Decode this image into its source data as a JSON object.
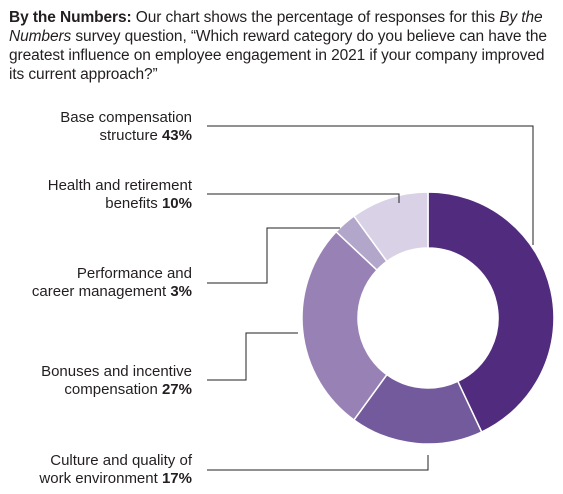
{
  "intro": {
    "lead": "By the Numbers:",
    "text_1": " Our chart shows the percentage of responses for this ",
    "survey_name": "By the Numbers",
    "text_2": " survey question, “Which reward category do you believe can have the greatest influence on employee engagement in 2021 if your company improved its current approach?”"
  },
  "chart_data": {
    "type": "pie",
    "donut": true,
    "categories": [
      "Base compensation structure",
      "Culture and quality of work environment",
      "Bonuses and incentive compensation",
      "Performance and career management",
      "Health and retirement benefits"
    ],
    "values": [
      43,
      17,
      27,
      3,
      10
    ],
    "units": "%",
    "colors": [
      "#512c7e",
      "#735a9c",
      "#9882b5",
      "#b3a6cb",
      "#d9d1e6"
    ],
    "labels": [
      {
        "lines": [
          "Base compensation",
          "structure"
        ],
        "pct": "43%"
      },
      {
        "lines": [
          "Culture and quality of",
          "work environment"
        ],
        "pct": "17%"
      },
      {
        "lines": [
          "Bonuses and incentive",
          "compensation"
        ],
        "pct": "27%"
      },
      {
        "lines": [
          "Performance and",
          "career management"
        ],
        "pct": "3%"
      },
      {
        "lines": [
          "Health and retirement",
          "benefits"
        ],
        "pct": "10%"
      }
    ]
  }
}
